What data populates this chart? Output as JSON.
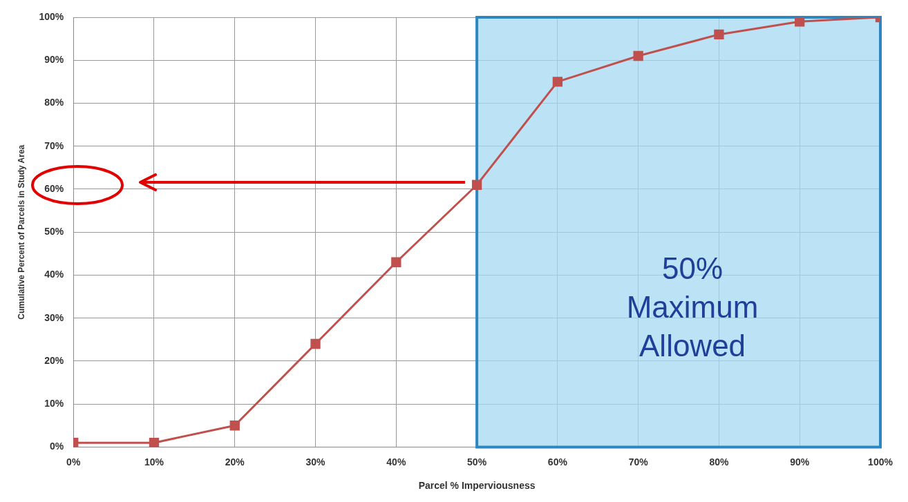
{
  "chart_data": {
    "type": "line",
    "xlabel": "Parcel % Imperviousness",
    "ylabel": "Cumulative Percent of Parcels in Study Area",
    "x": [
      0,
      10,
      20,
      30,
      40,
      50,
      60,
      70,
      80,
      90,
      100
    ],
    "series": [
      {
        "color": "#c0504d",
        "values": [
          1,
          1,
          5,
          24,
          43,
          61,
          85,
          91,
          96,
          99,
          100
        ]
      }
    ],
    "xlim": [
      0,
      100
    ],
    "xticks": [
      {
        "value": 0,
        "label": "0%"
      },
      {
        "value": 10,
        "label": "10%"
      },
      {
        "value": 20,
        "label": "20%"
      },
      {
        "value": 30,
        "label": "30%"
      },
      {
        "value": 40,
        "label": "40%"
      },
      {
        "value": 50,
        "label": "50%"
      },
      {
        "value": 60,
        "label": "60%"
      },
      {
        "value": 70,
        "label": "70%"
      },
      {
        "value": 80,
        "label": "80%"
      },
      {
        "value": 90,
        "label": "90%"
      },
      {
        "value": 100,
        "label": "100%"
      }
    ],
    "ylim": [
      0,
      100
    ],
    "yticks": [
      {
        "value": 0,
        "label": "0%"
      },
      {
        "value": 10,
        "label": "10%"
      },
      {
        "value": 20,
        "label": "20%"
      },
      {
        "value": 30,
        "label": "30%"
      },
      {
        "value": 40,
        "label": "40%"
      },
      {
        "value": 50,
        "label": "50%"
      },
      {
        "value": 60,
        "label": "60%"
      },
      {
        "value": 70,
        "label": "70%"
      },
      {
        "value": 80,
        "label": "80%"
      },
      {
        "value": 90,
        "label": "90%"
      },
      {
        "value": 100,
        "label": "100%"
      }
    ],
    "bands": [
      {
        "axis": "x",
        "from": 50,
        "to": 100,
        "label": "50% Maximum Allowed",
        "color": "#a6d8f2"
      }
    ],
    "grid": true,
    "marker": "square",
    "line_style": "solid"
  }
}
